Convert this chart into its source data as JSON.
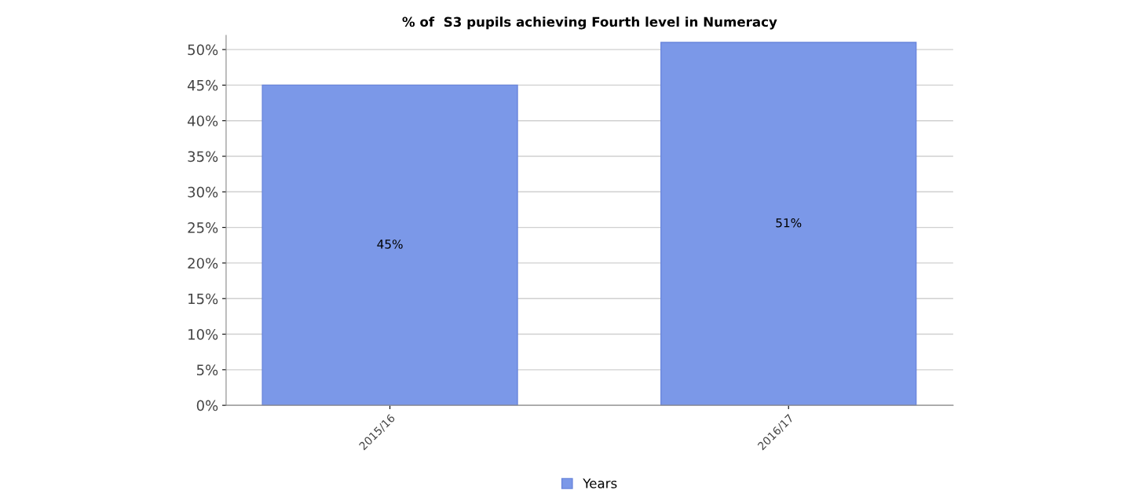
{
  "chart_data": {
    "type": "bar",
    "title": "% of  S3 pupils achieving Fourth level in Numeracy",
    "categories": [
      "2015/16",
      "2016/17"
    ],
    "series": [
      {
        "name": "Years",
        "color": "#7b98e8",
        "values": [
          45,
          51
        ],
        "value_labels": [
          "45%",
          "51%"
        ]
      }
    ],
    "ylim": [
      0,
      52
    ],
    "yticks": [
      {
        "value": 0,
        "label": "0%"
      },
      {
        "value": 5,
        "label": "5%"
      },
      {
        "value": 10,
        "label": "10%"
      },
      {
        "value": 15,
        "label": "15%"
      },
      {
        "value": 20,
        "label": "20%"
      },
      {
        "value": 25,
        "label": "25%"
      },
      {
        "value": 30,
        "label": "30%"
      },
      {
        "value": 35,
        "label": "35%"
      },
      {
        "value": 40,
        "label": "40%"
      },
      {
        "value": 45,
        "label": "45%"
      },
      {
        "value": 50,
        "label": "50%"
      }
    ],
    "grid": "y",
    "legend": "bottom"
  }
}
